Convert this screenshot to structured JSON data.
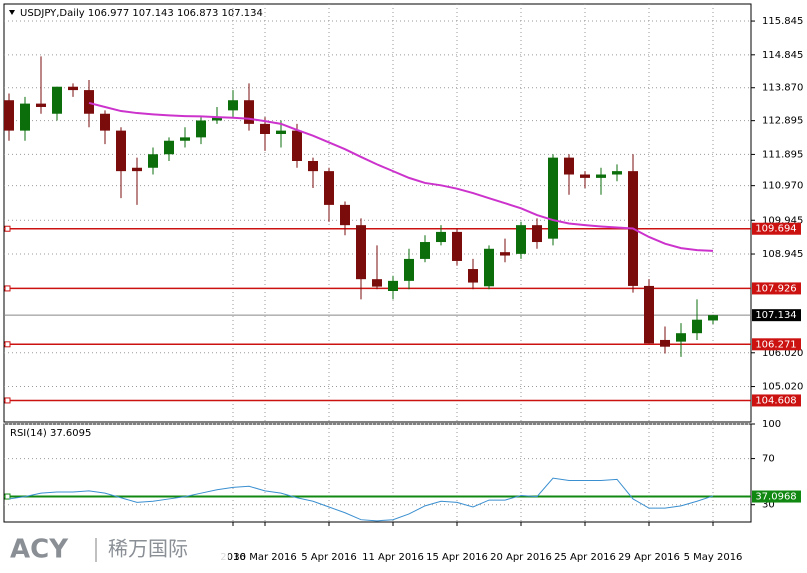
{
  "chart_data": [
    {
      "type": "candlestick",
      "title": "USDJPY,Daily 106.977 107.143 106.873 107.134",
      "categories": [
        null,
        null,
        null,
        null,
        null,
        null,
        null,
        null,
        null,
        null,
        null,
        null,
        null,
        null,
        "2016",
        null,
        "30 Mar 2016",
        null,
        null,
        null,
        "5 Apr 2016",
        null,
        null,
        null,
        "11 Apr 2016",
        null,
        null,
        null,
        "15 Apr 2016",
        null,
        null,
        null,
        "20 Apr 2016",
        null,
        null,
        null,
        "25 Apr 2016",
        null,
        null,
        null,
        "29 Apr 2016",
        null,
        null,
        null,
        "5 May 2016"
      ],
      "open": [
        113.5,
        112.6,
        113.4,
        113.1,
        113.9,
        113.8,
        113.1,
        112.6,
        111.5,
        111.5,
        111.9,
        112.3,
        112.4,
        112.9,
        113.2,
        113.5,
        112.8,
        112.5,
        112.6,
        111.7,
        111.4,
        110.4,
        109.8,
        108.2,
        107.85,
        108.15,
        108.8,
        109.3,
        109.6,
        108.5,
        107.99,
        109.0,
        108.95,
        109.8,
        109.4,
        111.8,
        111.3,
        111.2,
        111.3,
        111.4,
        108.0,
        106.4,
        106.35,
        106.6,
        106.977
      ],
      "high": [
        113.7,
        113.6,
        114.8,
        113.9,
        114.0,
        114.1,
        113.2,
        112.7,
        111.8,
        112.1,
        112.4,
        112.7,
        113.0,
        113.3,
        113.8,
        114.0,
        113.0,
        112.9,
        112.8,
        111.8,
        111.5,
        110.5,
        110.0,
        109.2,
        108.3,
        109.1,
        109.5,
        109.8,
        109.7,
        108.8,
        109.2,
        109.4,
        109.9,
        110.0,
        111.9,
        111.9,
        111.4,
        111.5,
        111.6,
        111.9,
        108.2,
        106.8,
        106.9,
        107.6,
        107.143
      ],
      "low": [
        112.3,
        112.3,
        113.1,
        112.9,
        113.6,
        112.7,
        112.2,
        110.6,
        110.4,
        111.3,
        111.7,
        112.1,
        112.2,
        112.8,
        113.0,
        112.6,
        112.0,
        112.1,
        111.5,
        110.9,
        109.9,
        109.5,
        107.6,
        107.9,
        107.6,
        107.9,
        108.7,
        109.2,
        108.6,
        107.9,
        107.9,
        108.7,
        108.8,
        109.1,
        109.2,
        110.7,
        110.9,
        110.7,
        111.1,
        107.8,
        106.3,
        106.0,
        105.9,
        106.4,
        106.873
      ],
      "close": [
        112.6,
        113.4,
        113.3,
        113.9,
        113.8,
        113.1,
        112.6,
        111.4,
        111.4,
        111.9,
        112.3,
        112.4,
        112.9,
        113.0,
        113.5,
        112.8,
        112.5,
        112.6,
        111.7,
        111.4,
        110.4,
        109.8,
        108.2,
        107.98,
        108.15,
        108.8,
        109.3,
        109.6,
        108.74,
        108.1,
        109.1,
        108.9,
        109.8,
        109.3,
        111.8,
        111.3,
        111.2,
        111.3,
        111.4,
        108.0,
        106.3,
        106.2,
        106.6,
        107.0,
        107.134
      ],
      "up_color": "#0b6e0b",
      "down_color": "#7a0c0c",
      "overlay": {
        "color": "#cc33cc",
        "values": [
          null,
          null,
          null,
          null,
          null,
          113.42,
          113.3,
          113.18,
          113.12,
          113.08,
          113.05,
          113.03,
          113.02,
          113.0,
          112.98,
          112.95,
          112.88,
          112.8,
          112.62,
          112.45,
          112.25,
          112.05,
          111.82,
          111.6,
          111.4,
          111.2,
          111.05,
          110.98,
          110.88,
          110.75,
          110.6,
          110.45,
          110.3,
          110.1,
          109.95,
          109.85,
          109.8,
          109.76,
          109.73,
          109.7,
          109.45,
          109.25,
          109.12,
          109.06,
          109.04
        ]
      },
      "ylim": [
        103.97,
        116.35
      ],
      "yticks": [
        115.845,
        114.845,
        {
          "value": 113.87,
          "label": "113.870"
        },
        112.895,
        111.895,
        {
          "value": 110.97,
          "label": "110.970"
        },
        109.945,
        108.945,
        {
          "value": 106.02,
          "label": "106.020"
        },
        {
          "value": 105.02,
          "label": "105.020"
        }
      ],
      "levels": [
        109.694,
        107.926,
        106.271,
        104.608
      ],
      "level_color": "#cc1111",
      "last_price": 107.134,
      "grid": true
    },
    {
      "type": "line",
      "title": "RSI(14) 37.6095",
      "values": [
        35,
        37,
        40,
        41,
        41,
        42,
        40,
        36,
        32,
        33,
        35,
        37,
        40,
        43,
        45,
        46,
        42,
        40,
        36,
        33,
        28,
        23,
        17,
        16,
        17,
        22,
        29,
        33,
        32,
        28,
        34,
        34,
        38,
        37,
        53,
        51,
        51,
        51,
        52,
        35,
        27,
        27,
        29,
        33,
        37.6095
      ],
      "color": "#3a8fd0",
      "ylim": [
        15,
        100
      ],
      "yticks": [
        100,
        70,
        30
      ],
      "level": 37.0968,
      "level_color": "#118811",
      "grid": true
    }
  ],
  "watermark": {
    "brand": "ACY",
    "text": "稀万国际"
  }
}
